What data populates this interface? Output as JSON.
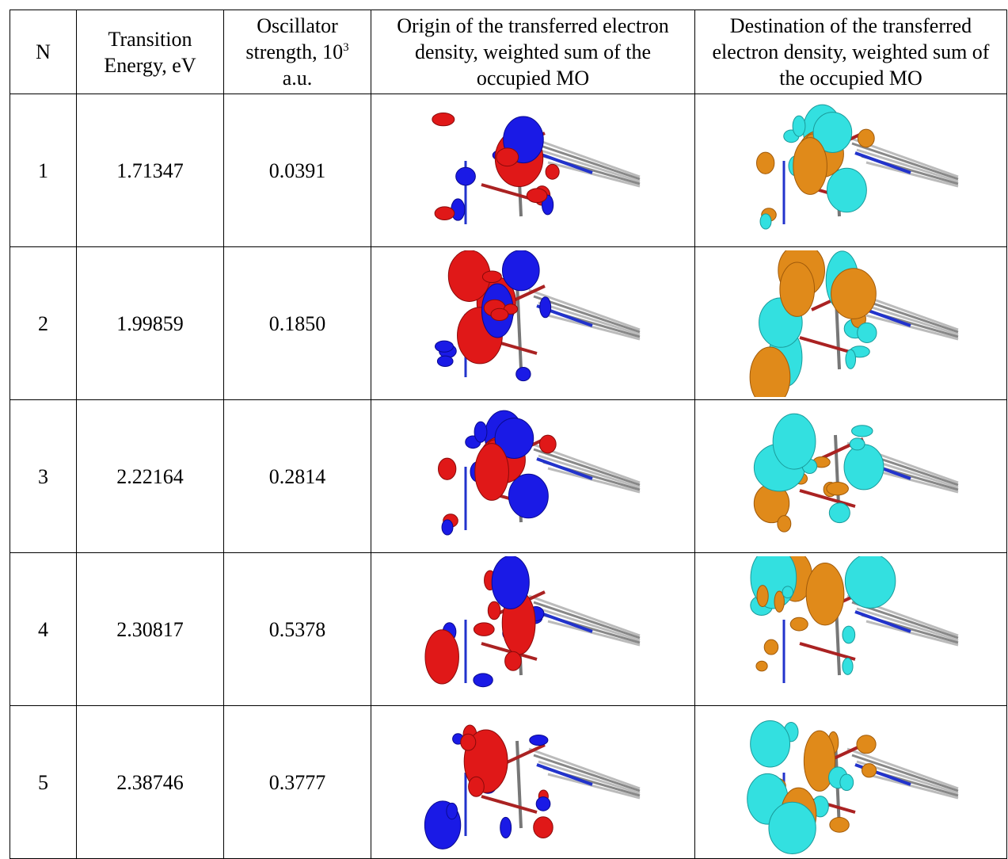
{
  "table": {
    "header": [
      "N",
      "Transition Energy, eV",
      {
        "text": "Oscillator strength, 10",
        "sup": "3",
        "after": "a.u."
      },
      "Origin of the transferred electron density, weighted sum of the occupied MO",
      "Destination of the transferred electron density, weighted sum of the occupied MO"
    ],
    "rows": [
      [
        "1",
        "1.71347",
        "0.0391"
      ],
      [
        "2",
        "1.99859",
        "0.1850"
      ],
      [
        "3",
        "2.22164",
        "0.2814"
      ],
      [
        "4",
        "2.30817",
        "0.5378"
      ],
      [
        "5",
        "2.38746",
        "0.3777"
      ]
    ]
  }
}
